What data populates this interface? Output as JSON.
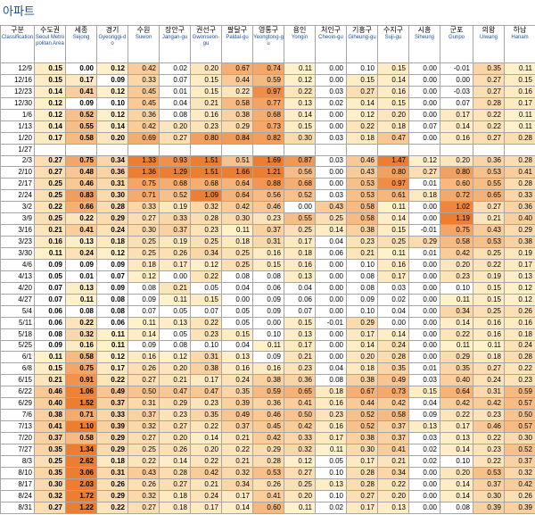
{
  "title": "아파트",
  "columns": [
    {
      "ko": "구분",
      "en": "Classification"
    },
    {
      "ko": "수도권",
      "en": "Seoul Metropolitan Area"
    },
    {
      "ko": "세종",
      "en": "Sejong"
    },
    {
      "ko": "경기",
      "en": "Gyeonggi-do"
    },
    {
      "ko": "수원",
      "en": "Suwon"
    },
    {
      "ko": "장안구",
      "en": "Jangan-gu"
    },
    {
      "ko": "권선구",
      "en": "Gwonseon-gu"
    },
    {
      "ko": "팔달구",
      "en": "Paldal-gu"
    },
    {
      "ko": "영통구",
      "en": "Yeongtong-gu"
    },
    {
      "ko": "용인",
      "en": "Yongin"
    },
    {
      "ko": "처인구",
      "en": "Cheoin-gu"
    },
    {
      "ko": "기흥구",
      "en": "Giheung-gu"
    },
    {
      "ko": "수지구",
      "en": "Suji-gu"
    },
    {
      "ko": "시흥",
      "en": "Siheung"
    },
    {
      "ko": "군포",
      "en": "Gunpo"
    },
    {
      "ko": "의왕",
      "en": "Uiwang"
    },
    {
      "ko": "하남",
      "en": "Hanam"
    }
  ],
  "rows": [
    {
      "date": "12/9",
      "values": [
        "0.15",
        "0.00",
        "0.12",
        "0.42",
        "0.02",
        "0.20",
        "0.67",
        "0.74",
        "0.11",
        "0.00",
        "0.10",
        "0.15",
        "0.00",
        "-0.01",
        "0.35",
        "0.11"
      ]
    },
    {
      "date": "12/16",
      "values": [
        "0.15",
        "0.17",
        "0.09",
        "0.33",
        "0.07",
        "0.15",
        "0.44",
        "0.59",
        "0.12",
        "0.00",
        "0.15",
        "0.14",
        "0.00",
        "0.00",
        "0.27",
        "0.15"
      ]
    },
    {
      "date": "12/23",
      "values": [
        "0.14",
        "0.41",
        "0.12",
        "0.45",
        "0.01",
        "0.15",
        "0.22",
        "0.97",
        "0.22",
        "0.03",
        "0.27",
        "0.16",
        "0.00",
        "-0.03",
        "0.27",
        "0.16"
      ]
    },
    {
      "date": "12/30",
      "values": [
        "0.12",
        "0.09",
        "0.10",
        "0.45",
        "0.04",
        "0.21",
        "0.58",
        "0.77",
        "0.13",
        "0.02",
        "0.14",
        "0.15",
        "0.00",
        "0.07",
        "0.28",
        "0.17"
      ]
    },
    {
      "date": "1/6",
      "values": [
        "0.12",
        "0.52",
        "0.12",
        "0.36",
        "0.08",
        "0.16",
        "0.38",
        "0.68",
        "0.14",
        "0.00",
        "0.12",
        "0.20",
        "0.00",
        "0.17",
        "0.22",
        "0.11"
      ]
    },
    {
      "date": "1/13",
      "values": [
        "0.14",
        "0.55",
        "0.14",
        "0.42",
        "0.20",
        "0.23",
        "0.29",
        "0.73",
        "0.15",
        "0.00",
        "0.22",
        "0.18",
        "0.07",
        "0.14",
        "0.22",
        "0.11"
      ]
    },
    {
      "date": "1/20",
      "values": [
        "0.17",
        "0.58",
        "0.20",
        "0.69",
        "0.27",
        "0.80",
        "0.84",
        "0.82",
        "0.30",
        "0.03",
        "0.18",
        "0.47",
        "0.00",
        "0.16",
        "0.27",
        "0.28"
      ]
    },
    {
      "date": "1/27",
      "values": [
        "",
        "",
        "",
        "",
        "",
        "",
        "",
        "",
        "",
        "",
        "",
        "",
        "",
        "",
        "",
        ""
      ]
    },
    {
      "date": "2/3",
      "values": [
        "0.27",
        "0.75",
        "0.34",
        "1.33",
        "0.93",
        "1.51",
        "0.51",
        "1.69",
        "0.87",
        "0.03",
        "0.46",
        "1.47",
        "0.12",
        "0.20",
        "0.36",
        "0.28"
      ]
    },
    {
      "date": "2/10",
      "values": [
        "0.27",
        "0.48",
        "0.36",
        "1.36",
        "1.29",
        "1.51",
        "1.66",
        "1.21",
        "0.56",
        "0.00",
        "0.43",
        "0.80",
        "0.27",
        "0.80",
        "0.53",
        "0.41"
      ]
    },
    {
      "date": "2/17",
      "values": [
        "0.25",
        "0.46",
        "0.31",
        "0.75",
        "0.68",
        "0.68",
        "0.64",
        "0.88",
        "0.68",
        "0.00",
        "0.53",
        "0.97",
        "0.01",
        "0.60",
        "0.55",
        "0.28"
      ]
    },
    {
      "date": "2/24",
      "values": [
        "0.25",
        "0.83",
        "0.30",
        "0.71",
        "0.52",
        "1.09",
        "0.64",
        "0.56",
        "0.52",
        "0.03",
        "0.53",
        "0.61",
        "0.18",
        "0.72",
        "0.65",
        "0.33"
      ]
    },
    {
      "date": "3/2",
      "values": [
        "0.22",
        "0.66",
        "0.28",
        "0.33",
        "0.19",
        "0.32",
        "0.42",
        "0.46",
        "0.00",
        "0.43",
        "0.58",
        "0.11",
        "0.00",
        "1.02",
        "0.27",
        "0.36"
      ]
    },
    {
      "date": "3/9",
      "values": [
        "0.25",
        "0.22",
        "0.29",
        "0.27",
        "0.33",
        "0.28",
        "0.30",
        "0.23",
        "0.55",
        "0.25",
        "0.58",
        "0.14",
        "0.00",
        "1.19",
        "0.21",
        "0.40"
      ]
    },
    {
      "date": "3/16",
      "values": [
        "0.21",
        "0.41",
        "0.24",
        "0.30",
        "0.37",
        "0.23",
        "0.11",
        "0.37",
        "0.25",
        "0.14",
        "0.38",
        "0.15",
        "-0.01",
        "0.75",
        "0.43",
        "0.29"
      ]
    },
    {
      "date": "3/23",
      "values": [
        "0.16",
        "0.13",
        "0.18",
        "0.25",
        "0.19",
        "0.25",
        "0.18",
        "0.31",
        "0.17",
        "0.04",
        "0.23",
        "0.25",
        "0.29",
        "0.58",
        "0.53",
        "0.38"
      ]
    },
    {
      "date": "3/30",
      "values": [
        "0.11",
        "0.24",
        "0.12",
        "0.25",
        "0.26",
        "0.34",
        "0.25",
        "0.16",
        "0.18",
        "0.06",
        "0.21",
        "0.11",
        "0.01",
        "0.42",
        "0.25",
        "0.19"
      ]
    },
    {
      "date": "4/6",
      "values": [
        "0.09",
        "0.09",
        "0.09",
        "0.18",
        "0.17",
        "0.12",
        "0.25",
        "0.15",
        "0.16",
        "0.00",
        "0.10",
        "0.16",
        "0.00",
        "0.20",
        "0.22",
        "0.17"
      ]
    },
    {
      "date": "4/13",
      "values": [
        "0.05",
        "0.01",
        "0.07",
        "0.12",
        "0.00",
        "0.22",
        "0.08",
        "0.08",
        "0.13",
        "0.00",
        "0.08",
        "0.17",
        "0.00",
        "0.23",
        "0.19",
        "0.13"
      ]
    },
    {
      "date": "4/20",
      "values": [
        "0.07",
        "0.13",
        "0.09",
        "0.08",
        "0.21",
        "0.05",
        "0.04",
        "0.06",
        "0.04",
        "0.00",
        "0.08",
        "0.03",
        "0.00",
        "0.10",
        "0.15",
        "0.12"
      ]
    },
    {
      "date": "4/27",
      "values": [
        "0.07",
        "0.11",
        "0.08",
        "0.09",
        "0.11",
        "0.15",
        "0.00",
        "0.09",
        "0.06",
        "0.00",
        "0.09",
        "0.02",
        "0.00",
        "0.11",
        "0.15",
        "0.12"
      ]
    },
    {
      "date": "5/4",
      "values": [
        "0.06",
        "0.08",
        "0.08",
        "0.07",
        "0.05",
        "0.07",
        "0.05",
        "0.09",
        "0.07",
        "0.00",
        "0.10",
        "0.04",
        "0.00",
        "0.34",
        "0.25",
        "0.26"
      ]
    },
    {
      "date": "5/11",
      "values": [
        "0.06",
        "0.22",
        "0.06",
        "0.11",
        "0.13",
        "0.22",
        "0.05",
        "0.00",
        "0.15",
        "-0.01",
        "0.29",
        "0.00",
        "0.00",
        "0.14",
        "0.16",
        "0.16"
      ]
    },
    {
      "date": "5/18",
      "values": [
        "0.08",
        "0.32",
        "0.11",
        "0.14",
        "0.05",
        "0.23",
        "0.15",
        "0.10",
        "0.13",
        "0.00",
        "0.17",
        "0.14",
        "0.00",
        "0.22",
        "0.16",
        "0.18"
      ]
    },
    {
      "date": "5/25",
      "values": [
        "0.09",
        "0.16",
        "0.11",
        "0.09",
        "0.08",
        "0.10",
        "0.04",
        "0.11",
        "0.17",
        "0.00",
        "0.14",
        "0.24",
        "0.00",
        "0.11",
        "0.11",
        "0.24"
      ]
    },
    {
      "date": "6/1",
      "values": [
        "0.11",
        "0.58",
        "0.12",
        "0.16",
        "0.12",
        "0.31",
        "0.13",
        "0.09",
        "0.21",
        "0.00",
        "0.20",
        "0.28",
        "0.00",
        "0.29",
        "0.18",
        "0.28"
      ]
    },
    {
      "date": "6/8",
      "values": [
        "0.15",
        "0.75",
        "0.17",
        "0.26",
        "0.20",
        "0.38",
        "0.16",
        "0.16",
        "0.23",
        "0.04",
        "0.18",
        "0.35",
        "0.01",
        "0.35",
        "0.27",
        "0.22"
      ]
    },
    {
      "date": "6/15",
      "values": [
        "0.21",
        "0.91",
        "0.22",
        "0.27",
        "0.21",
        "0.17",
        "0.24",
        "0.38",
        "0.36",
        "0.08",
        "0.38",
        "0.49",
        "0.03",
        "0.40",
        "0.24",
        "0.23"
      ]
    },
    {
      "date": "6/22",
      "values": [
        "0.46",
        "1.06",
        "0.49",
        "0.50",
        "0.47",
        "0.47",
        "0.35",
        "0.59",
        "0.65",
        "0.18",
        "0.67",
        "0.73",
        "0.15",
        "0.64",
        "0.31",
        "0.59"
      ]
    },
    {
      "date": "6/29",
      "values": [
        "0.40",
        "1.52",
        "0.37",
        "0.31",
        "0.29",
        "0.23",
        "0.39",
        "0.36",
        "0.41",
        "0.16",
        "0.44",
        "0.42",
        "0.04",
        "0.42",
        "0.42",
        "0.57"
      ]
    },
    {
      "date": "7/6",
      "values": [
        "0.38",
        "0.71",
        "0.33",
        "0.37",
        "0.23",
        "0.35",
        "0.49",
        "0.46",
        "0.50",
        "0.23",
        "0.52",
        "0.58",
        "0.09",
        "0.22",
        "0.23",
        "0.50"
      ]
    },
    {
      "date": "7/13",
      "values": [
        "0.41",
        "1.10",
        "0.39",
        "0.32",
        "0.27",
        "0.22",
        "0.37",
        "0.45",
        "0.42",
        "0.16",
        "0.52",
        "0.37",
        "0.13",
        "0.17",
        "0.46",
        "0.57"
      ]
    },
    {
      "date": "7/20",
      "values": [
        "0.37",
        "0.58",
        "0.29",
        "0.27",
        "0.20",
        "0.14",
        "0.21",
        "0.42",
        "0.33",
        "0.17",
        "0.38",
        "0.37",
        "0.03",
        "0.13",
        "0.22",
        "0.30"
      ]
    },
    {
      "date": "7/27",
      "values": [
        "0.35",
        "1.34",
        "0.29",
        "0.25",
        "0.26",
        "0.20",
        "0.22",
        "0.29",
        "0.32",
        "0.11",
        "0.30",
        "0.41",
        "0.02",
        "0.14",
        "0.23",
        "0.52"
      ]
    },
    {
      "date": "8/3",
      "values": [
        "0.25",
        "2.62",
        "0.18",
        "0.22",
        "0.14",
        "0.22",
        "0.21",
        "0.28",
        "0.12",
        "0.05",
        "0.17",
        "0.21",
        "0.02",
        "0.10",
        "0.22",
        "0.37"
      ]
    },
    {
      "date": "8/10",
      "values": [
        "0.35",
        "3.06",
        "0.31",
        "0.43",
        "0.28",
        "0.42",
        "0.32",
        "0.53",
        "0.27",
        "0.10",
        "0.28",
        "0.34",
        "0.00",
        "0.20",
        "0.53",
        "0.32"
      ]
    },
    {
      "date": "8/17",
      "values": [
        "0.30",
        "2.03",
        "0.26",
        "0.26",
        "0.27",
        "0.21",
        "0.34",
        "0.26",
        "0.25",
        "0.13",
        "0.28",
        "0.22",
        "0.00",
        "0.14",
        "0.37",
        "0.42"
      ]
    },
    {
      "date": "8/24",
      "values": [
        "0.32",
        "1.72",
        "0.29",
        "0.32",
        "0.18",
        "0.24",
        "0.17",
        "0.41",
        "0.20",
        "0.10",
        "0.27",
        "0.20",
        "0.00",
        "0.14",
        "0.30",
        "0.26"
      ]
    },
    {
      "date": "8/31",
      "values": [
        "0.27",
        "1.22",
        "0.22",
        "0.27",
        "0.18",
        "0.17",
        "0.14",
        "0.60",
        "0.11",
        "0.02",
        "0.17",
        "0.13",
        "0.00",
        "0.08",
        "0.39",
        "0.39"
      ]
    }
  ],
  "colors": {
    "title": "#1d4f91",
    "english_label": "#1f4e9c",
    "grid": "#a6a6a6",
    "heat_low": "#fff2cc",
    "heat_high": "#ed7d31"
  }
}
